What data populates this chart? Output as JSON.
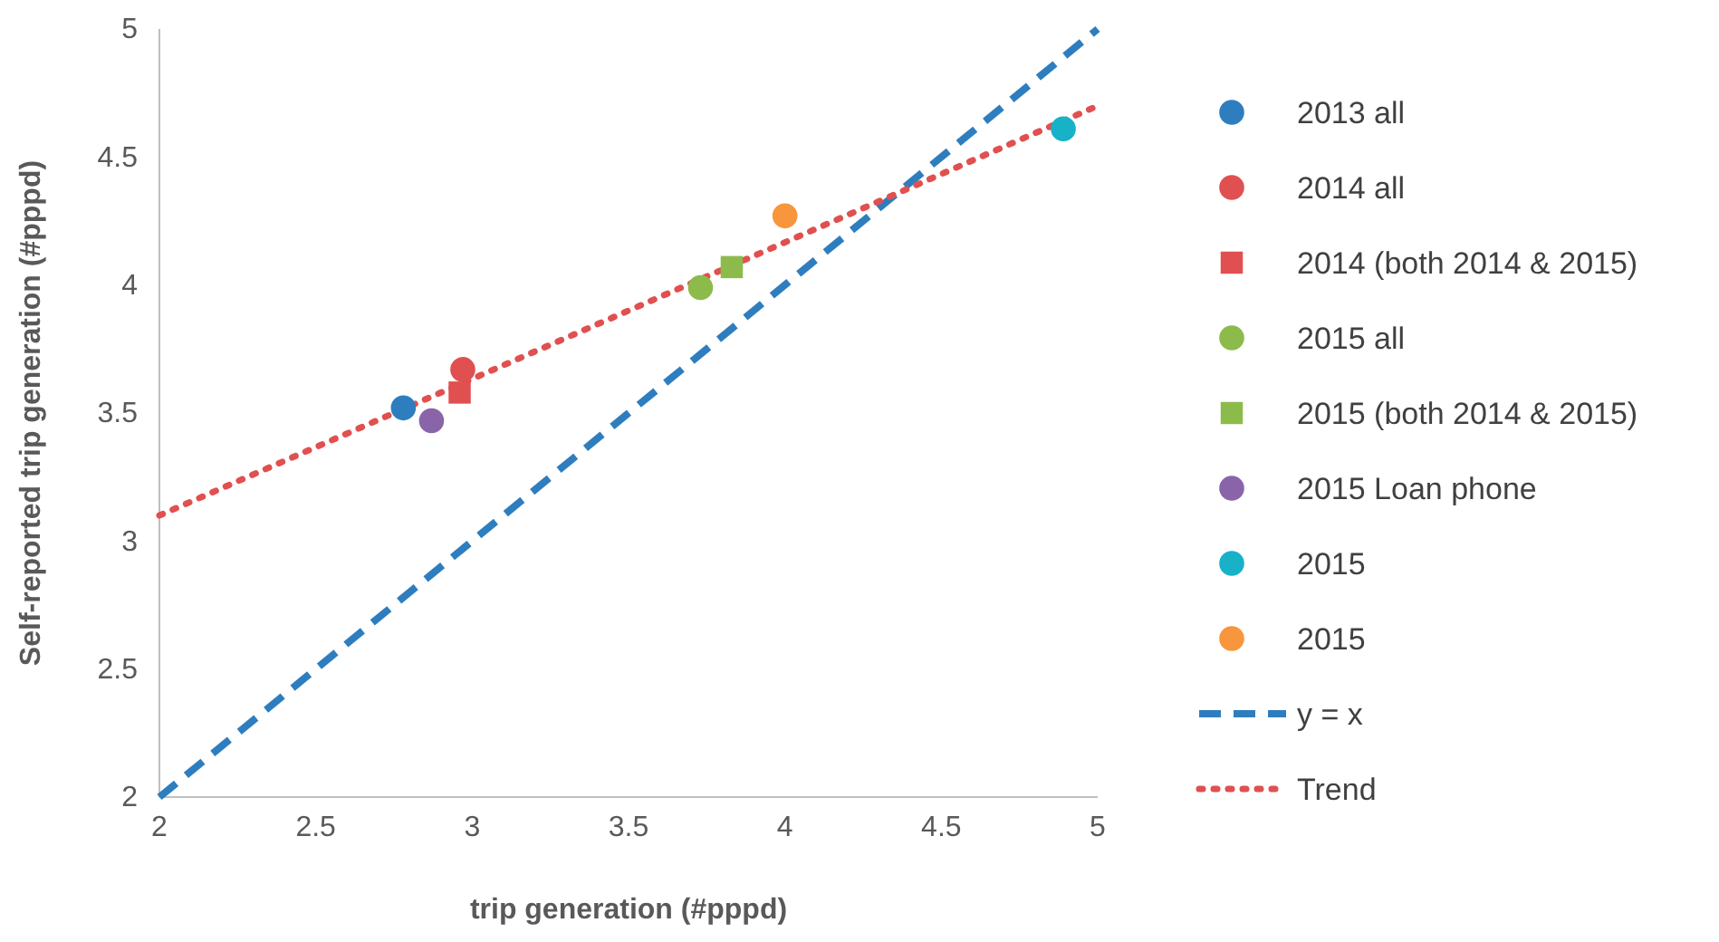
{
  "chart_data": {
    "type": "scatter",
    "xlabel": "trip generation (#pppd)",
    "ylabel": "Self-reported trip  generation (#pppd)",
    "xlim": [
      2,
      5
    ],
    "ylim": [
      2,
      5
    ],
    "xticks": [
      2,
      2.5,
      3,
      3.5,
      4,
      4.5,
      5
    ],
    "yticks": [
      2,
      2.5,
      3,
      3.5,
      4,
      4.5,
      5
    ],
    "grid": false,
    "legend": "right",
    "series": [
      {
        "name": "2013 all",
        "color": "#2e7ebf",
        "marker": "circle",
        "x": [
          2.78
        ],
        "values": [
          3.52
        ]
      },
      {
        "name": "2014 all",
        "color": "#e05050",
        "marker": "circle",
        "x": [
          2.97
        ],
        "values": [
          3.67
        ]
      },
      {
        "name": "2014 (both 2014 & 2015)",
        "color": "#e05050",
        "marker": "square",
        "x": [
          2.96
        ],
        "values": [
          3.58
        ]
      },
      {
        "name": "2015 all",
        "color": "#8cbb4c",
        "marker": "circle",
        "x": [
          3.73
        ],
        "values": [
          3.99
        ]
      },
      {
        "name": "2015 (both 2014 & 2015)",
        "color": "#8cbb4c",
        "marker": "square",
        "x": [
          3.83
        ],
        "values": [
          4.07
        ]
      },
      {
        "name": "2015 Loan phone",
        "color": "#8a64a8",
        "marker": "circle",
        "x": [
          2.87
        ],
        "values": [
          3.47
        ]
      },
      {
        "name": "2015",
        "color": "#17b1c8",
        "marker": "circle",
        "x": [
          4.89
        ],
        "values": [
          4.61
        ]
      },
      {
        "name": "2015",
        "color": "#f7963c",
        "marker": "circle",
        "x": [
          4.0
        ],
        "values": [
          4.27
        ]
      },
      {
        "name": "y = x",
        "type": "line",
        "color": "#2e7ebf",
        "line_style": "dashed",
        "marker": "none",
        "x": [
          2,
          5
        ],
        "values": [
          2,
          5
        ]
      },
      {
        "name": "Trend",
        "type": "line",
        "color": "#e05050",
        "line_style": "dotted",
        "marker": "none",
        "x": [
          2,
          5
        ],
        "values": [
          3.1,
          4.7
        ]
      }
    ]
  }
}
